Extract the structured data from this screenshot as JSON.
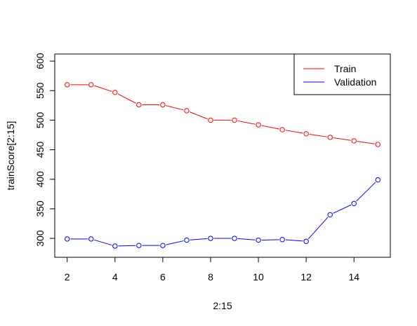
{
  "chart_data": {
    "type": "line",
    "xlabel": "2:15",
    "ylabel": "trainScore[2:15]",
    "x": [
      2,
      3,
      4,
      5,
      6,
      7,
      8,
      9,
      10,
      11,
      12,
      13,
      14,
      15
    ],
    "xlim": [
      1.48,
      15.52
    ],
    "ylim": [
      268,
      612
    ],
    "xticks": [
      2,
      4,
      6,
      8,
      10,
      12,
      14
    ],
    "yticks": [
      300,
      350,
      400,
      450,
      500,
      550,
      600
    ],
    "grid": false,
    "legend_position": "top-right",
    "series": [
      {
        "name": "Train",
        "color": "#ff0000",
        "values": [
          560,
          560,
          547,
          526,
          526,
          516,
          500,
          500,
          492,
          484,
          477,
          471,
          465,
          459
        ]
      },
      {
        "name": "Validation",
        "color": "#0000ff",
        "values": [
          299,
          299,
          287,
          288,
          288,
          297,
          300,
          300,
          297,
          298,
          295,
          340,
          359,
          399
        ]
      }
    ]
  }
}
